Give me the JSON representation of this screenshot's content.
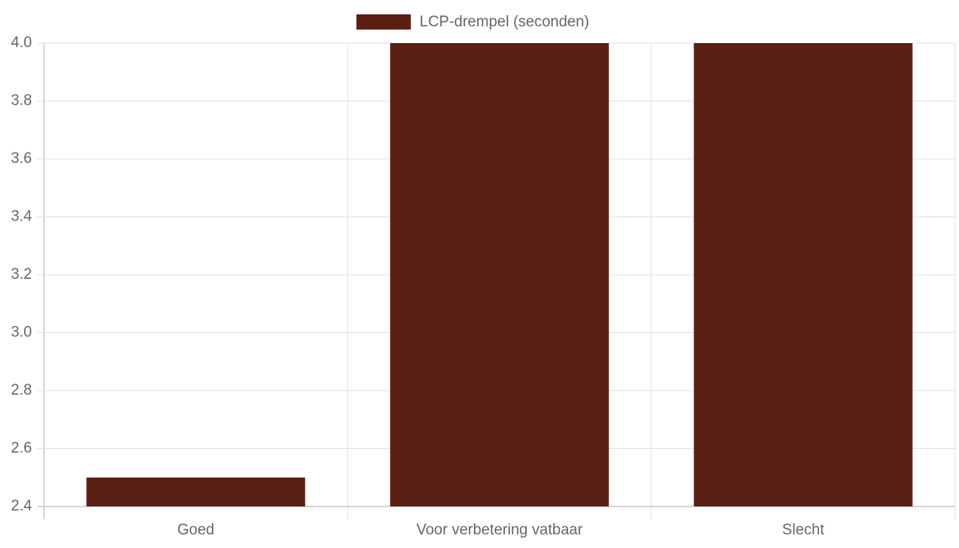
{
  "chart_data": {
    "type": "bar",
    "categories": [
      "Goed",
      "Voor verbetering vatbaar",
      "Slecht"
    ],
    "series": [
      {
        "name": "LCP-drempel (seconden)",
        "color": "#5c1f14",
        "values": [
          2.5,
          4,
          4
        ]
      }
    ],
    "ylim": [
      2.4,
      4
    ],
    "yticks": [
      2.4,
      2.6,
      2.8,
      {
        "value": 3,
        "label": "3.0"
      },
      3.2,
      3.4,
      3.6,
      3.8,
      {
        "value": 4,
        "label": "4.0"
      }
    ],
    "grid": true,
    "legend": "top"
  }
}
